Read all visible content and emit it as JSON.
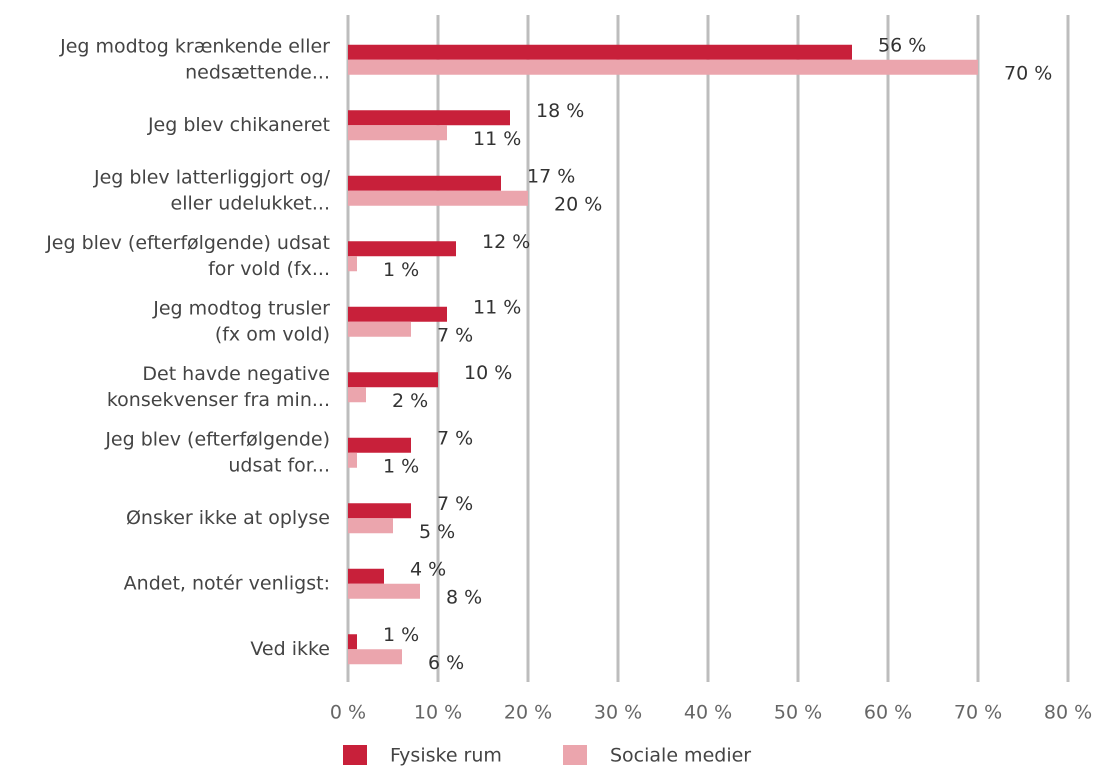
{
  "chart_data": {
    "type": "bar",
    "orientation": "horizontal",
    "categories": [
      [
        "Jeg modtog krænkende eller",
        "nedsættende..."
      ],
      [
        "Jeg blev chikaneret"
      ],
      [
        "Jeg blev latterliggjort og/",
        "eller udelukket..."
      ],
      [
        "Jeg blev (efterfølgende) udsat",
        "for vold (fx..."
      ],
      [
        "Jeg modtog trusler",
        "(fx om vold)"
      ],
      [
        "Det havde negative",
        "konsekvenser fra min..."
      ],
      [
        "Jeg blev (efterfølgende)",
        "udsat for..."
      ],
      [
        "Ønsker ikke at oplyse"
      ],
      [
        "Andet, notér venligst:"
      ],
      [
        "Ved ikke"
      ]
    ],
    "series": [
      {
        "name": "Fysiske rum",
        "color": "#c8203a",
        "values": [
          56,
          18,
          17,
          12,
          11,
          10,
          7,
          7,
          4,
          1
        ],
        "value_labels": [
          "56 %",
          "18 %",
          "17 %",
          "12 %",
          "11 %",
          "10 %",
          "7 %",
          "7 %",
          "4 %",
          "1 %"
        ]
      },
      {
        "name": "Sociale medier",
        "color": "#eba5ad",
        "values": [
          70,
          11,
          20,
          1,
          7,
          2,
          1,
          5,
          8,
          6
        ],
        "value_labels": [
          "70 %",
          "11 %",
          "20 %",
          "1 %",
          "7 %",
          "2 %",
          "1 %",
          "5 %",
          "8 %",
          "6 %"
        ]
      }
    ],
    "xlim": [
      0,
      80
    ],
    "xticks": [
      {
        "value": 0,
        "label": "0 %"
      },
      {
        "value": 10,
        "label": "10 %"
      },
      {
        "value": 20,
        "label": "20 %"
      },
      {
        "value": 30,
        "label": "30 %"
      },
      {
        "value": 40,
        "label": "40 %"
      },
      {
        "value": 50,
        "label": "50 %"
      },
      {
        "value": 60,
        "label": "60 %"
      },
      {
        "value": 70,
        "label": "70 %"
      },
      {
        "value": 80,
        "label": "80 %"
      }
    ],
    "grid": true,
    "legend": "bottom"
  }
}
